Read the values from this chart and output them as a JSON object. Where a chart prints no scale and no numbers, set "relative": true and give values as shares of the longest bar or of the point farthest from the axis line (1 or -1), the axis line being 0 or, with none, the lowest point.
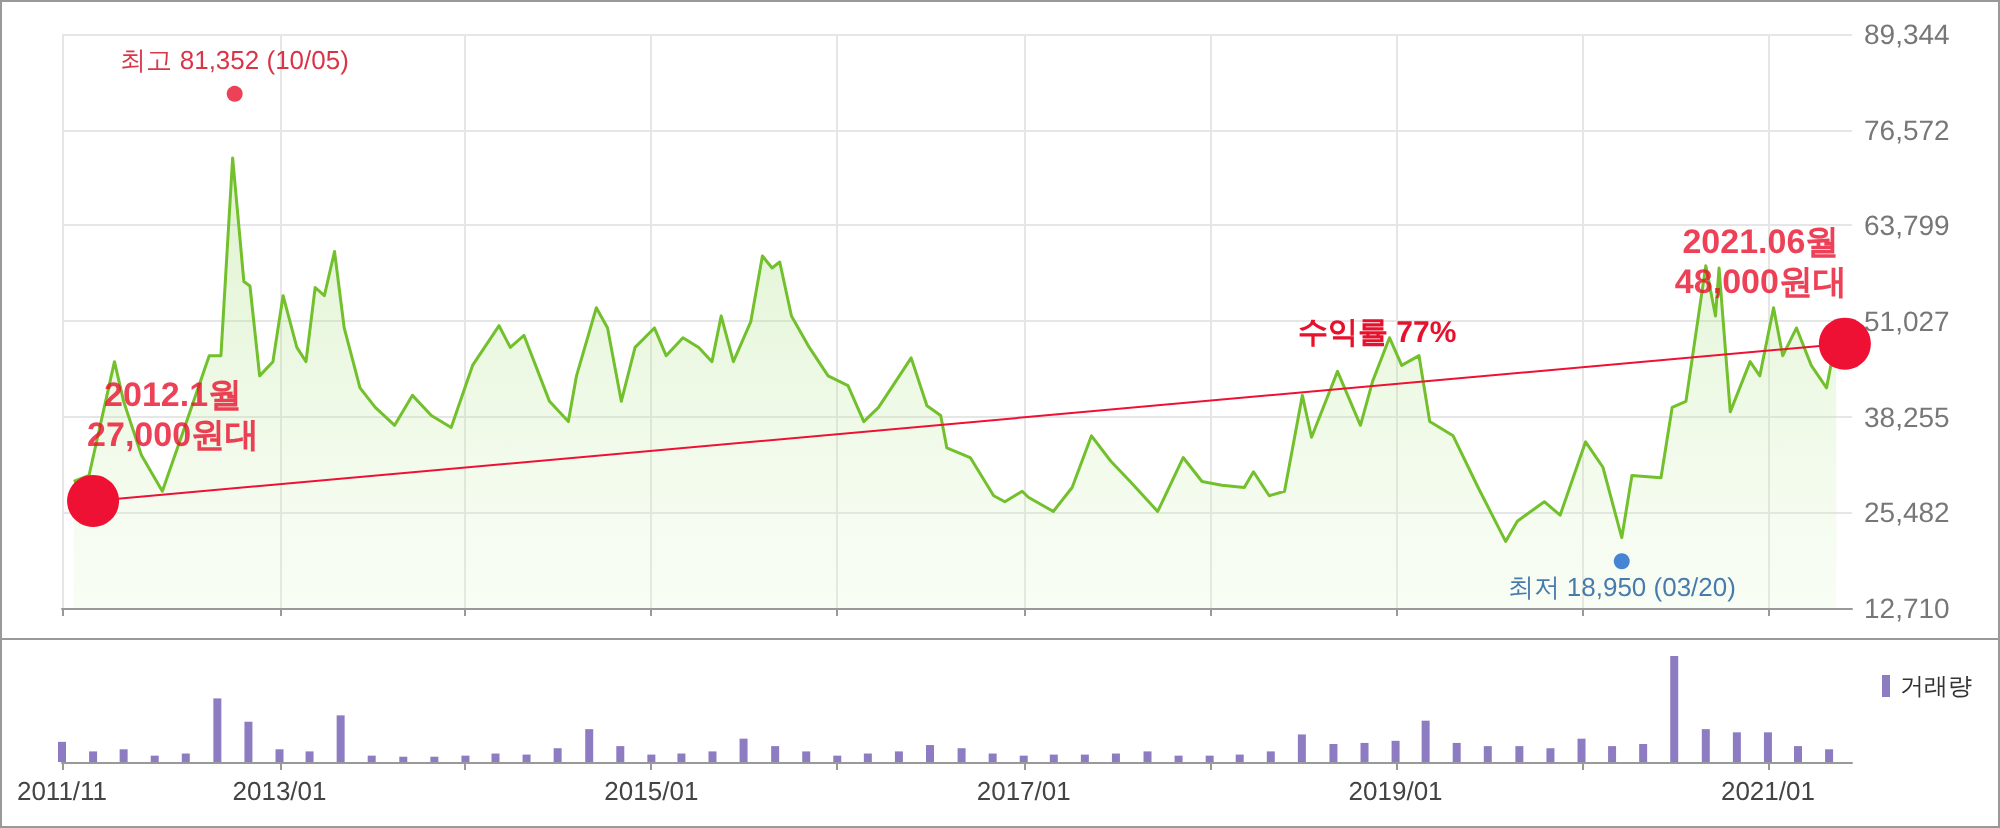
{
  "chart_data": [
    {
      "type": "area",
      "tick_labels": "y",
      "grid": true,
      "xlim": [
        "2011-11-01",
        "2021-06-15"
      ],
      "xticks": [
        {
          "value": "2011-11",
          "label": null
        },
        {
          "value": "2013-01",
          "label": null
        },
        {
          "value": "2014-01",
          "label": null
        },
        {
          "value": "2015-01",
          "label": null
        },
        {
          "value": "2016-01",
          "label": null
        },
        {
          "value": "2017-01",
          "label": null
        },
        {
          "value": "2018-01",
          "label": null
        },
        {
          "value": "2019-01",
          "label": null
        },
        {
          "value": "2020-01",
          "label": null
        },
        {
          "value": "2021-01",
          "label": null
        }
      ],
      "ylim": [
        12710,
        89344
      ],
      "yticks": [
        {
          "value": 12710,
          "label": "12,710"
        },
        {
          "value": 25482,
          "label": "25,482"
        },
        {
          "value": 38255,
          "label": "38,255"
        },
        {
          "value": 51027,
          "label": "51,027"
        },
        {
          "value": 63799,
          "label": "63,799"
        },
        {
          "value": 76572,
          "label": "76,572"
        },
        {
          "value": 89344,
          "label": "89,344"
        }
      ],
      "series": [
        {
          "color": "#72c02c",
          "x": [
            "2011-11-24",
            "2011-12-24",
            "2012-02-12",
            "2012-03-01",
            "2012-04-05",
            "2012-05-16",
            "2012-06-23",
            "2012-08-16",
            "2012-09-08",
            "2012-10-01",
            "2012-10-23",
            "2012-11-04",
            "2012-11-23",
            "2012-12-19",
            "2013-01-08",
            "2013-02-04",
            "2013-02-22",
            "2013-03-12",
            "2013-03-30",
            "2013-04-19",
            "2013-05-08",
            "2013-06-08",
            "2013-07-08",
            "2013-08-15",
            "2013-09-19",
            "2013-10-26",
            "2013-12-04",
            "2014-01-15",
            "2014-03-08",
            "2014-03-30",
            "2014-04-26",
            "2014-06-15",
            "2014-07-22",
            "2014-08-07",
            "2014-09-15",
            "2014-10-07",
            "2014-11-03",
            "2014-11-30",
            "2015-01-07",
            "2015-01-30",
            "2015-03-04",
            "2015-04-04",
            "2015-04-30",
            "2015-05-18",
            "2015-06-11",
            "2015-07-15",
            "2015-08-07",
            "2015-08-26",
            "2015-09-10",
            "2015-10-03",
            "2015-11-07",
            "2015-12-14",
            "2016-01-22",
            "2016-02-22",
            "2016-03-22",
            "2016-04-25",
            "2016-05-25",
            "2016-06-25",
            "2016-07-22",
            "2016-08-03",
            "2016-09-18",
            "2016-11-03",
            "2016-11-25",
            "2016-12-29",
            "2017-01-10",
            "2017-02-28",
            "2017-04-06",
            "2017-05-14",
            "2017-06-21",
            "2017-07-29",
            "2017-09-21",
            "2017-11-10",
            "2017-12-17",
            "2018-01-25",
            "2018-03-10",
            "2018-03-28",
            "2018-04-28",
            "2018-05-28",
            "2018-07-02",
            "2018-07-20",
            "2018-09-09",
            "2018-10-24",
            "2018-11-17",
            "2018-12-20",
            "2019-01-13",
            "2019-02-16",
            "2019-03-09",
            "2019-04-24",
            "2019-06-12",
            "2019-08-05",
            "2019-08-28",
            "2019-10-20",
            "2019-11-20",
            "2020-01-09",
            "2020-02-12",
            "2020-03-20",
            "2020-04-09",
            "2020-06-05",
            "2020-06-27",
            "2020-07-24",
            "2020-09-01",
            "2020-09-20",
            "2020-09-27",
            "2020-10-19",
            "2020-11-27",
            "2020-12-16",
            "2021-01-12",
            "2021-01-30",
            "2021-02-26",
            "2021-03-27",
            "2021-04-26",
            "2021-05-15"
          ],
          "values": [
            29600,
            30400,
            45600,
            40300,
            33100,
            28300,
            35700,
            46400,
            46400,
            72800,
            56300,
            55700,
            43700,
            45600,
            54400,
            47500,
            45600,
            55500,
            54400,
            60300,
            50100,
            42100,
            39500,
            37100,
            41100,
            38400,
            36800,
            45100,
            50400,
            47500,
            49100,
            40300,
            37600,
            43700,
            52800,
            50100,
            40300,
            47500,
            50100,
            46400,
            48800,
            47500,
            45600,
            51700,
            45600,
            50900,
            59700,
            58100,
            58900,
            51700,
            47500,
            43700,
            42400,
            37600,
            39500,
            43000,
            46100,
            39700,
            38400,
            34100,
            32800,
            27700,
            26900,
            28300,
            27500,
            25600,
            28800,
            35700,
            32300,
            29600,
            25600,
            32800,
            29600,
            29100,
            28800,
            30900,
            27700,
            28300,
            41100,
            35500,
            44300,
            37100,
            43000,
            48800,
            45100,
            46400,
            37600,
            35700,
            28800,
            21600,
            24300,
            26900,
            25100,
            34900,
            31500,
            22100,
            30400,
            30100,
            39500,
            40300,
            58400,
            51700,
            58100,
            38900,
            45600,
            43700,
            52800,
            46400,
            50100,
            45100,
            42100,
            48800
          ]
        },
        {
          "type": "line",
          "color": "#ee1133",
          "marker": "circle",
          "x": [
            "2012-01",
            "2021-06"
          ],
          "values": [
            27000,
            48000
          ]
        },
        {
          "type": "scatter",
          "color": "#e8112d",
          "x": [
            "2012-10-05"
          ],
          "values": [
            81352
          ]
        },
        {
          "type": "scatter",
          "color": "#1a66cc",
          "x": [
            "2020-03-20"
          ],
          "values": [
            18950
          ]
        }
      ],
      "annotations": [
        {
          "text": "최고 81,352 (10/05)",
          "x": "2012-10-05",
          "y": 81352
        },
        {
          "text": "최저 18,950 (03/20)",
          "x": "2020-03-20",
          "y": 18950
        },
        {
          "text": "2012.1월\n27,000원대",
          "x": "2012-01",
          "y": 27000
        },
        {
          "text": "2021.06월\n48,000원대",
          "x": "2021-06",
          "y": 48000
        },
        "수익률 77%"
      ]
    },
    {
      "type": "bar",
      "relative": true,
      "tick_labels": "x",
      "legend": "top right",
      "xlim": [
        "2011-11-01",
        "2021-06-15"
      ],
      "xticks": [
        {
          "value": "2011-11",
          "label": "2011/11"
        },
        {
          "value": "2013-01",
          "label": "2013/01"
        },
        {
          "value": "2014-01",
          "label": null
        },
        {
          "value": "2015-01",
          "label": "2015/01"
        },
        {
          "value": "2016-01",
          "label": null
        },
        {
          "value": "2017-01",
          "label": "2017/01"
        },
        {
          "value": "2018-01",
          "label": null
        },
        {
          "value": "2019-01",
          "label": "2019/01"
        },
        {
          "value": "2020-01",
          "label": null
        },
        {
          "value": "2021-01",
          "label": "2021/01"
        }
      ],
      "x": [
        "2011-11",
        "2012-01",
        "2012-03",
        "2012-05",
        "2012-07",
        "2012-09",
        "2012-11",
        "2013-01",
        "2013-03",
        "2013-05",
        "2013-07",
        "2013-09",
        "2013-11",
        "2014-01",
        "2014-03",
        "2014-05",
        "2014-07",
        "2014-09",
        "2014-11",
        "2015-01",
        "2015-03",
        "2015-05",
        "2015-07",
        "2015-09",
        "2015-11",
        "2016-01",
        "2016-03",
        "2016-05",
        "2016-07",
        "2016-09",
        "2016-11",
        "2017-01",
        "2017-03",
        "2017-05",
        "2017-07",
        "2017-09",
        "2017-11",
        "2018-01",
        "2018-03",
        "2018-05",
        "2018-07",
        "2018-09",
        "2018-11",
        "2019-01",
        "2019-03",
        "2019-05",
        "2019-07",
        "2019-09",
        "2019-11",
        "2020-01",
        "2020-03",
        "2020-05",
        "2020-07",
        "2020-09",
        "2020-11",
        "2021-01",
        "2021-03",
        "2021-05"
      ],
      "series": [
        {
          "name": "거래량",
          "color": "#8e7cc3",
          "values": [
            0.19,
            0.1,
            0.12,
            0.06,
            0.08,
            0.6,
            0.38,
            0.12,
            0.1,
            0.44,
            0.06,
            0.05,
            0.05,
            0.06,
            0.08,
            0.07,
            0.13,
            0.31,
            0.15,
            0.07,
            0.08,
            0.1,
            0.22,
            0.15,
            0.1,
            0.06,
            0.08,
            0.1,
            0.16,
            0.13,
            0.08,
            0.06,
            0.07,
            0.07,
            0.08,
            0.1,
            0.06,
            0.06,
            0.07,
            0.1,
            0.26,
            0.17,
            0.18,
            0.2,
            0.39,
            0.18,
            0.15,
            0.15,
            0.13,
            0.22,
            0.15,
            0.17,
            1,
            0.31,
            0.28,
            0.28,
            0.15,
            0.12
          ]
        }
      ]
    }
  ]
}
